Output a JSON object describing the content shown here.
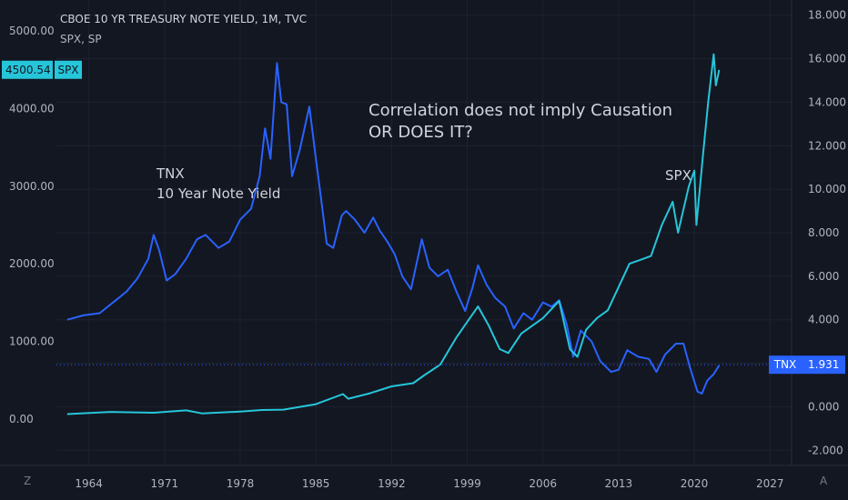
{
  "header": {
    "title": "CBOE 10 YR TREASURY NOTE YIELD, 1M, TVC",
    "subtitle": "SPX, SP"
  },
  "annotations": {
    "tnx_title": "TNX",
    "tnx_desc": "10 Year Note Yield",
    "headline_1": "Correlation does not imply Causation",
    "headline_2": "OR DOES IT?",
    "spx_label": "SPX"
  },
  "corners": {
    "left": "Z",
    "right": "A"
  },
  "colors": {
    "background": "#131722",
    "tnx": "#2962ff",
    "spx": "#26c6da",
    "grid": "#1e2230",
    "text": "#b2b5be"
  },
  "chart_data": {
    "type": "line",
    "x_ticks": [
      "1964",
      "1971",
      "1978",
      "1985",
      "1992",
      "1999",
      "2006",
      "2013",
      "2020",
      "2027"
    ],
    "x_range": [
      1961,
      2029
    ],
    "left_axis": {
      "name": "SPX",
      "ticks": [
        "0.00",
        "1000.00",
        "2000.00",
        "3000.00",
        "4000.00",
        "5000.00"
      ],
      "range": [
        -600,
        5400
      ]
    },
    "right_axis": {
      "name": "TNX",
      "ticks": [
        "-2.000",
        "0.000",
        "2.000",
        "4.000",
        "6.000",
        "8.000",
        "10.000",
        "12.000",
        "14.000",
        "16.000",
        "18.000"
      ],
      "range": [
        -2.7,
        18.7
      ]
    },
    "last_values": {
      "spx": {
        "label": "SPX",
        "value": "4500.54",
        "numeric": 4500.54
      },
      "tnx": {
        "label": "TNX",
        "value": "1.931",
        "numeric": 1.931
      }
    },
    "series": [
      {
        "name": "TNX",
        "axis": "right",
        "x": [
          1962.0,
          1963.5,
          1965.0,
          1966.5,
          1967.5,
          1968.5,
          1969.5,
          1970.0,
          1970.5,
          1971.2,
          1972.0,
          1973.0,
          1974.0,
          1974.8,
          1976.0,
          1977.0,
          1978.0,
          1979.0,
          1979.8,
          1980.3,
          1980.8,
          1981.4,
          1981.8,
          1982.3,
          1982.8,
          1983.5,
          1984.4,
          1985.0,
          1985.5,
          1986.0,
          1986.6,
          1987.4,
          1987.8,
          1988.6,
          1989.5,
          1990.3,
          1990.9,
          1991.6,
          1992.3,
          1993.0,
          1993.8,
          1994.8,
          1995.5,
          1996.3,
          1997.2,
          1998.0,
          1998.8,
          1999.5,
          2000.0,
          2000.8,
          2001.6,
          2002.5,
          2003.3,
          2004.2,
          2005.0,
          2006.0,
          2006.8,
          2007.5,
          2008.2,
          2008.8,
          2009.5,
          2010.5,
          2011.3,
          2012.3,
          2013.0,
          2013.8,
          2014.8,
          2015.8,
          2016.5,
          2017.3,
          2018.3,
          2019.0,
          2019.6,
          2020.3,
          2020.7,
          2021.2,
          2021.8,
          2022.3
        ],
        "y": [
          4.0,
          4.2,
          4.3,
          4.9,
          5.3,
          5.9,
          6.8,
          7.9,
          7.2,
          5.8,
          6.1,
          6.8,
          7.7,
          7.9,
          7.3,
          7.6,
          8.6,
          9.1,
          10.6,
          12.8,
          11.4,
          15.8,
          14.0,
          13.9,
          10.6,
          11.8,
          13.8,
          11.4,
          9.5,
          7.5,
          7.3,
          8.8,
          9.0,
          8.6,
          8.0,
          8.7,
          8.1,
          7.6,
          7.0,
          6.0,
          5.4,
          7.7,
          6.4,
          6.0,
          6.3,
          5.3,
          4.4,
          5.5,
          6.5,
          5.6,
          5.0,
          4.6,
          3.6,
          4.3,
          4.0,
          4.8,
          4.6,
          4.9,
          3.8,
          2.3,
          3.5,
          3.0,
          2.1,
          1.6,
          1.7,
          2.6,
          2.3,
          2.2,
          1.6,
          2.4,
          2.9,
          2.9,
          1.8,
          0.7,
          0.6,
          1.2,
          1.5,
          1.9
        ]
      },
      {
        "name": "SPX",
        "axis": "left",
        "x": [
          1962.0,
          1966.0,
          1970.0,
          1973.0,
          1974.5,
          1978.0,
          1980.0,
          1982.0,
          1985.0,
          1987.5,
          1988.0,
          1990.0,
          1992.0,
          1994.0,
          1995.0,
          1996.5,
          1998.0,
          1999.0,
          2000.0,
          2001.0,
          2002.0,
          2002.8,
          2004.0,
          2006.0,
          2007.5,
          2008.5,
          2009.2,
          2010.0,
          2011.0,
          2012.0,
          2013.0,
          2014.0,
          2015.0,
          2016.0,
          2017.0,
          2018.0,
          2018.5,
          2019.5,
          2020.0,
          2020.2,
          2020.8,
          2021.3,
          2021.8,
          2022.0,
          2022.3
        ],
        "y": [
          62,
          90,
          80,
          110,
          70,
          95,
          115,
          120,
          190,
          320,
          260,
          330,
          420,
          460,
          560,
          700,
          1050,
          1250,
          1450,
          1200,
          900,
          850,
          1100,
          1300,
          1520,
          900,
          800,
          1150,
          1300,
          1400,
          1700,
          2000,
          2050,
          2100,
          2500,
          2800,
          2400,
          3000,
          3200,
          2500,
          3400,
          4100,
          4700,
          4300,
          4500
        ]
      }
    ]
  }
}
